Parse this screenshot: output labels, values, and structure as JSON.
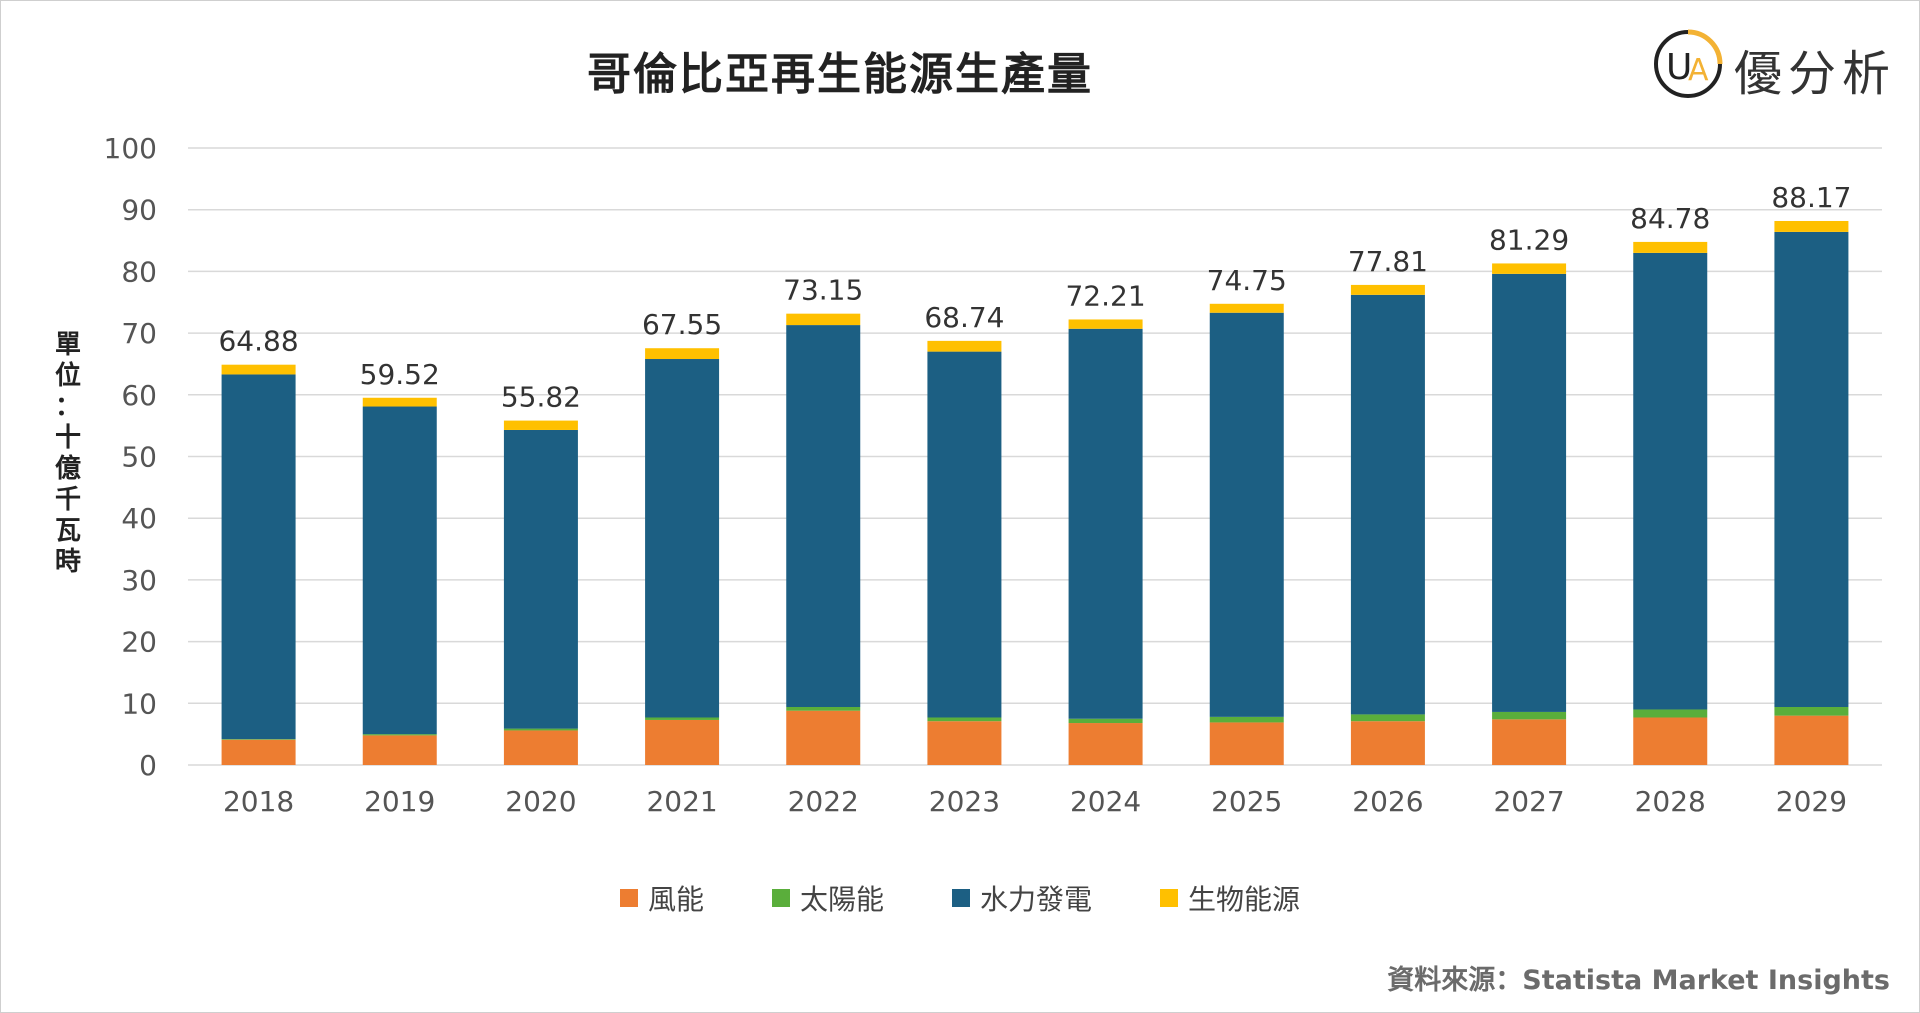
{
  "title": "哥倫比亞再生能源生產量",
  "brand": {
    "name": "優分析",
    "logo_letters": "UA",
    "ring_color": "#F3B234",
    "text_color": "#333333"
  },
  "ylabel_chars": [
    "單",
    "位",
    "：",
    "十",
    "億",
    "千",
    "瓦",
    "時"
  ],
  "source": "資料來源：Statista Market Insights",
  "colors": {
    "wind": "#ED7D31",
    "solar": "#5AAE3B",
    "hydro": "#1C5F83",
    "bio": "#FFC000",
    "grid": "#D9D9D9"
  },
  "chart_data": {
    "type": "bar",
    "stacked": true,
    "title": "哥倫比亞再生能源生產量",
    "ylabel": "單位：十億千瓦時",
    "xlabel": "",
    "ylim": [
      0,
      100
    ],
    "yticks": [
      0,
      10,
      20,
      30,
      40,
      50,
      60,
      70,
      80,
      90,
      100
    ],
    "categories": [
      "2018",
      "2019",
      "2020",
      "2021",
      "2022",
      "2023",
      "2024",
      "2025",
      "2026",
      "2027",
      "2028",
      "2029"
    ],
    "series": [
      {
        "name": "風能",
        "key": "wind",
        "values": [
          4.1,
          4.8,
          5.6,
          7.3,
          8.8,
          7.1,
          6.8,
          6.9,
          7.1,
          7.4,
          7.7,
          8.0
        ]
      },
      {
        "name": "太陽能",
        "key": "solar",
        "values": [
          0.1,
          0.2,
          0.3,
          0.4,
          0.6,
          0.6,
          0.7,
          0.9,
          1.1,
          1.2,
          1.3,
          1.4
        ]
      },
      {
        "name": "水力發電",
        "key": "hydro",
        "values": [
          59.1,
          53.1,
          48.4,
          58.1,
          61.9,
          59.3,
          63.2,
          65.5,
          68.0,
          71.0,
          74.0,
          77.0
        ]
      },
      {
        "name": "生物能源",
        "key": "bio",
        "values": [
          1.58,
          1.42,
          1.52,
          1.75,
          1.85,
          1.74,
          1.51,
          1.45,
          1.61,
          1.69,
          1.78,
          1.77
        ]
      }
    ],
    "totals": [
      "64.88",
      "59.52",
      "55.82",
      "67.55",
      "73.15",
      "68.74",
      "72.21",
      "74.75",
      "77.81",
      "81.29",
      "84.78",
      "88.17"
    ],
    "legend_position": "bottom"
  }
}
